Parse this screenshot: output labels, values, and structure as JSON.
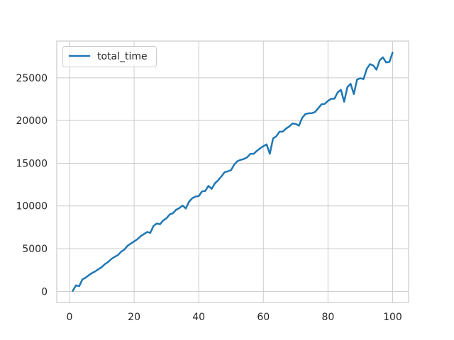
{
  "chart_data": {
    "type": "line",
    "title": "",
    "xlabel": "",
    "ylabel": "",
    "xlim": [
      -3.95,
      104.95
    ],
    "ylim": [
      -1300,
      29300
    ],
    "xticks": [
      0,
      20,
      40,
      60,
      80,
      100
    ],
    "yticks": [
      0,
      5000,
      10000,
      15000,
      20000,
      25000
    ],
    "xtick_labels": [
      "0",
      "20",
      "40",
      "60",
      "80",
      "100"
    ],
    "ytick_labels": [
      "0",
      "5000",
      "10000",
      "15000",
      "20000",
      "25000"
    ],
    "grid": true,
    "legend": {
      "placement": "upper-left"
    },
    "series": [
      {
        "name": "total_time",
        "color": "#1f77b4",
        "x": [
          1,
          2,
          3,
          4,
          5,
          6,
          7,
          8,
          9,
          10,
          11,
          12,
          13,
          14,
          15,
          16,
          17,
          18,
          19,
          20,
          21,
          22,
          23,
          24,
          25,
          26,
          27,
          28,
          29,
          30,
          31,
          32,
          33,
          34,
          35,
          36,
          37,
          38,
          39,
          40,
          41,
          42,
          43,
          44,
          45,
          46,
          47,
          48,
          49,
          50,
          51,
          52,
          53,
          54,
          55,
          56,
          57,
          58,
          59,
          60,
          61,
          62,
          63,
          64,
          65,
          66,
          67,
          68,
          69,
          70,
          71,
          72,
          73,
          74,
          75,
          76,
          77,
          78,
          79,
          80,
          81,
          82,
          83,
          84,
          85,
          86,
          87,
          88,
          89,
          90,
          91,
          92,
          93,
          94,
          95,
          96,
          97,
          98,
          99,
          100
        ],
        "values": [
          50,
          700,
          600,
          1400,
          1600,
          1900,
          2150,
          2350,
          2600,
          2850,
          3200,
          3450,
          3800,
          4050,
          4250,
          4650,
          4900,
          5350,
          5600,
          5850,
          6100,
          6450,
          6700,
          6950,
          6850,
          7650,
          7950,
          7850,
          8300,
          8550,
          9000,
          9150,
          9550,
          9750,
          10050,
          9700,
          10500,
          10900,
          11100,
          11150,
          11700,
          11750,
          12350,
          12000,
          12650,
          13000,
          13450,
          13950,
          14050,
          14200,
          14850,
          15250,
          15400,
          15500,
          15700,
          16100,
          16100,
          16450,
          16750,
          17000,
          17200,
          16100,
          17900,
          18150,
          18700,
          18700,
          19050,
          19300,
          19650,
          19600,
          19400,
          20300,
          20750,
          20850,
          20850,
          21000,
          21450,
          21900,
          21950,
          22300,
          22550,
          22550,
          23300,
          23600,
          22200,
          23900,
          24300,
          23100,
          24800,
          24950,
          24850,
          26050,
          26600,
          26450,
          25950,
          27050,
          27400,
          26800,
          26850,
          27950
        ]
      }
    ]
  }
}
